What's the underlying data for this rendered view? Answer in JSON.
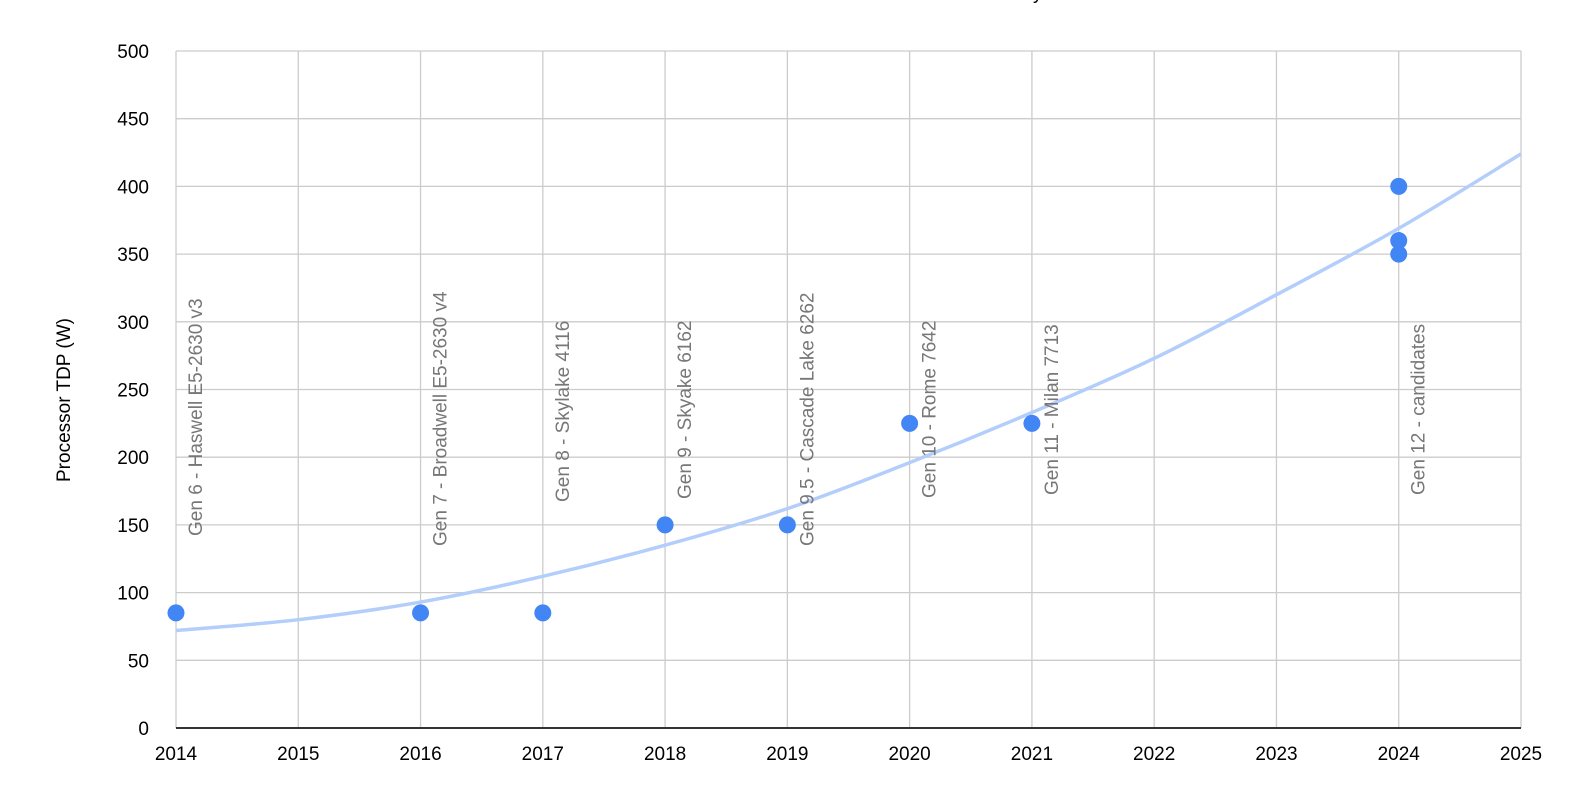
{
  "chart_data": {
    "type": "scatter",
    "title_fragment": "y",
    "ylabel": "Processor TDP (W)",
    "xlabel": "",
    "xlim": [
      2014,
      2025
    ],
    "ylim": [
      0,
      500
    ],
    "x_ticks": [
      2014,
      2015,
      2016,
      2017,
      2018,
      2019,
      2020,
      2021,
      2022,
      2023,
      2024,
      2025
    ],
    "y_ticks": [
      0,
      50,
      100,
      150,
      200,
      250,
      300,
      350,
      400,
      450,
      500
    ],
    "grid": true,
    "colors": {
      "points": "#4285f4",
      "trendline": "#b3cefb",
      "grid": "#cccccc",
      "axis": "#333333",
      "label": "#777777"
    },
    "points": [
      {
        "x": 2014,
        "y": 85
      },
      {
        "x": 2016,
        "y": 85
      },
      {
        "x": 2017,
        "y": 85
      },
      {
        "x": 2018,
        "y": 150
      },
      {
        "x": 2019,
        "y": 150
      },
      {
        "x": 2020,
        "y": 225
      },
      {
        "x": 2021,
        "y": 225
      },
      {
        "x": 2024,
        "y": 400
      },
      {
        "x": 2024,
        "y": 360
      },
      {
        "x": 2024,
        "y": 350
      }
    ],
    "point_labels": [
      {
        "x": 2014,
        "text": "Gen 6 - Haswell E5-2630 v3"
      },
      {
        "x": 2016,
        "text": "Gen 7 - Broadwell E5-2630 v4"
      },
      {
        "x": 2017,
        "text": "Gen 8 - Skylake 4116"
      },
      {
        "x": 2018,
        "text": "Gen 9 - Skyake 6162"
      },
      {
        "x": 2019,
        "text": "Gen 9.5 - Cascade Lake 6262"
      },
      {
        "x": 2020,
        "text": "Gen 10 - Rome 7642"
      },
      {
        "x": 2021,
        "text": "Gen 11 - Milan 7713"
      },
      {
        "x": 2024,
        "text": "Gen 12 - candidates"
      }
    ],
    "trendline": {
      "type": "polynomial",
      "x": [
        2014,
        2015,
        2016,
        2017,
        2018,
        2019,
        2020,
        2021,
        2022,
        2023,
        2024,
        2025
      ],
      "y": [
        72,
        80,
        93,
        112,
        135,
        162,
        196,
        233,
        273,
        320,
        369,
        424
      ]
    }
  }
}
